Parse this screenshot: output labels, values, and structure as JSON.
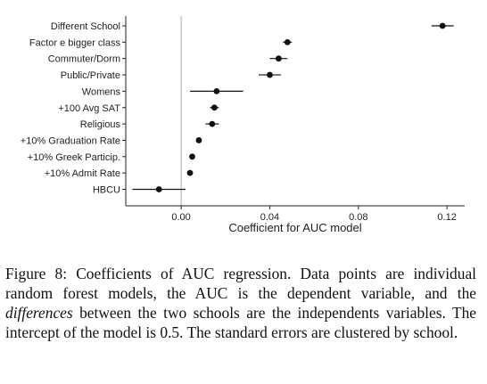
{
  "chart_data": {
    "type": "scatter",
    "subtype": "coefficient-plot-with-error-bars",
    "xlabel": "Coefficient for AUC model",
    "ylabel": "",
    "title": "",
    "xlim": [
      -0.025,
      0.128
    ],
    "xticks": [
      0.0,
      0.04,
      0.08,
      0.12
    ],
    "xtick_labels": [
      "0.00",
      "0.04",
      "0.08",
      "0.12"
    ],
    "reference_line_x": 0,
    "grid": false,
    "legend": "none",
    "categories": [
      "Different School",
      "Factor e bigger class",
      "Commuter/Dorm",
      "Public/Private",
      "Womens",
      "+100 Avg SAT",
      "Religious",
      "+10% Graduation Rate",
      "+10% Greek Particip.",
      "+10% Admit Rate",
      "HBCU"
    ],
    "points": [
      {
        "estimate": 0.118,
        "low": 0.113,
        "high": 0.123
      },
      {
        "estimate": 0.048,
        "low": 0.046,
        "high": 0.05
      },
      {
        "estimate": 0.044,
        "low": 0.04,
        "high": 0.048
      },
      {
        "estimate": 0.04,
        "low": 0.035,
        "high": 0.045
      },
      {
        "estimate": 0.016,
        "low": 0.004,
        "high": 0.028
      },
      {
        "estimate": 0.015,
        "low": 0.013,
        "high": 0.017
      },
      {
        "estimate": 0.014,
        "low": 0.011,
        "high": 0.017
      },
      {
        "estimate": 0.008,
        "low": 0.007,
        "high": 0.009
      },
      {
        "estimate": 0.005,
        "low": 0.005,
        "high": 0.005
      },
      {
        "estimate": 0.004,
        "low": 0.004,
        "high": 0.004
      },
      {
        "estimate": -0.01,
        "low": -0.022,
        "high": 0.002
      }
    ],
    "colors": {
      "point": "#111111",
      "errorbar": "#111111",
      "reference_line": "#aaaaaa",
      "axis": "#222222"
    }
  },
  "caption": {
    "prefix": "Figure 8: Coefficients of AUC regression. Data points are individual random forest models, the AUC is the dependent variable, and the ",
    "emphasis": "differences",
    "suffix": " between the two schools are the independents variables. The intercept of the model is 0.5. The standard errors are clustered by school."
  }
}
